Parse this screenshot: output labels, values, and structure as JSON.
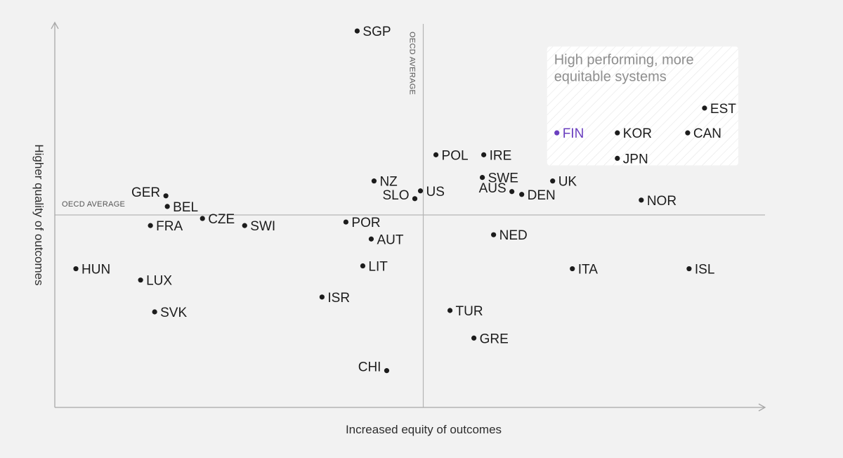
{
  "chart_data": {
    "type": "scatter",
    "xlabel": "Increased equity of outcomes",
    "ylabel": "Higher quality of outcomes",
    "x_reference_label": "OECD AVERAGE",
    "y_reference_label": "OECD AVERAGE",
    "x_reference": 0,
    "y_reference": 0,
    "xlim": [
      -52.4,
      48.6
    ],
    "ylim": [
      -27.2,
      27.2
    ],
    "grid": false,
    "quadrant_annotation": {
      "lines": [
        "High performing, more",
        "equitable systems"
      ],
      "x_range": [
        17.6,
        44.8
      ],
      "y_range": [
        7,
        23.8
      ]
    },
    "highlight_color": "#6a3fbf",
    "points": [
      {
        "label": "SGP",
        "x": -9.4,
        "y": 26.0
      },
      {
        "label": "EST",
        "x": 40.0,
        "y": 15.1
      },
      {
        "label": "FIN",
        "x": 19.0,
        "y": 11.6,
        "highlight": true
      },
      {
        "label": "KOR",
        "x": 27.6,
        "y": 11.6
      },
      {
        "label": "CAN",
        "x": 37.6,
        "y": 11.6
      },
      {
        "label": "JPN",
        "x": 27.6,
        "y": 8.0
      },
      {
        "label": "POL",
        "x": 1.8,
        "y": 8.5
      },
      {
        "label": "IRE",
        "x": 8.6,
        "y": 8.5
      },
      {
        "label": "NZ",
        "x": -7.0,
        "y": 4.8
      },
      {
        "label": "SWE",
        "x": 8.4,
        "y": 5.3
      },
      {
        "label": "UK",
        "x": 18.4,
        "y": 4.8
      },
      {
        "label": "US",
        "x": -0.4,
        "y": 3.4
      },
      {
        "label": "SLO",
        "x": -1.2,
        "y": 2.3
      },
      {
        "label": "AUS",
        "x": 12.6,
        "y": 3.3
      },
      {
        "label": "DEN",
        "x": 14.0,
        "y": 2.9
      },
      {
        "label": "NOR",
        "x": 31.0,
        "y": 2.1
      },
      {
        "label": "GER",
        "x": -36.6,
        "y": 2.7
      },
      {
        "label": "BEL",
        "x": -36.4,
        "y": 1.2
      },
      {
        "label": "FRA",
        "x": -38.8,
        "y": -1.5
      },
      {
        "label": "CZE",
        "x": -31.4,
        "y": -0.5
      },
      {
        "label": "SWI",
        "x": -25.4,
        "y": -1.5
      },
      {
        "label": "POR",
        "x": -11.0,
        "y": -1.0
      },
      {
        "label": "AUT",
        "x": -7.4,
        "y": -3.4
      },
      {
        "label": "NED",
        "x": 10.0,
        "y": -2.8
      },
      {
        "label": "HUN",
        "x": -49.4,
        "y": -7.6
      },
      {
        "label": "LUX",
        "x": -40.2,
        "y": -9.2
      },
      {
        "label": "LIT",
        "x": -8.6,
        "y": -7.2
      },
      {
        "label": "ITA",
        "x": 21.2,
        "y": -7.6
      },
      {
        "label": "ISL",
        "x": 37.8,
        "y": -7.6
      },
      {
        "label": "ISR",
        "x": -14.4,
        "y": -11.6
      },
      {
        "label": "SVK",
        "x": -38.2,
        "y": -13.7
      },
      {
        "label": "TUR",
        "x": 3.8,
        "y": -13.5
      },
      {
        "label": "GRE",
        "x": 7.2,
        "y": -17.4
      },
      {
        "label": "CHI",
        "x": -5.2,
        "y": -22.0
      }
    ]
  }
}
